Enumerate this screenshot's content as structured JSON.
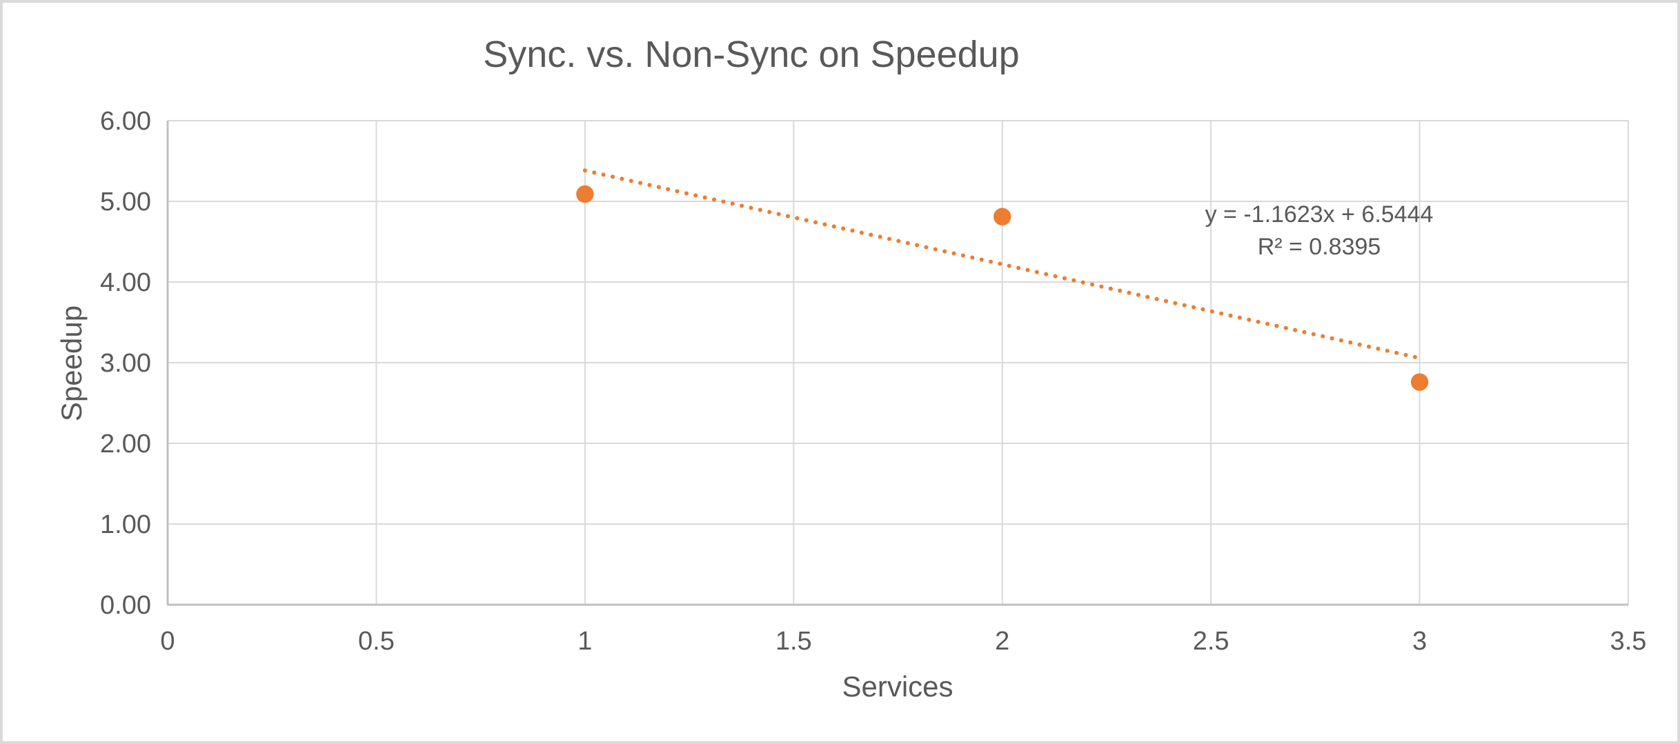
{
  "chart_data": {
    "type": "scatter",
    "title": "Sync. vs. Non-Sync on Speedup",
    "xlabel": "Services",
    "ylabel": "Speedup",
    "grid": true,
    "legend": "none",
    "points": [
      {
        "x": 1,
        "y": 5.09
      },
      {
        "x": 2,
        "y": 4.81
      },
      {
        "x": 3,
        "y": 2.76
      }
    ],
    "trendline": {
      "type": "linear",
      "style": "dotted",
      "slope": -1.1623,
      "intercept": 6.5444,
      "r2": 0.8395,
      "x_start": 1,
      "x_end": 3,
      "equation_label": "y = -1.1623x + 6.5444",
      "r2_label": "R² = 0.8395"
    },
    "x_axis": {
      "min": 0,
      "max": 3.5,
      "tick_step": 0.5,
      "tick_labels": [
        "0",
        "0.5",
        "1",
        "1.5",
        "2",
        "2.5",
        "3",
        "3.5"
      ]
    },
    "y_axis": {
      "min": 0,
      "max": 6,
      "tick_step": 1,
      "tick_labels": [
        "0.00",
        "1.00",
        "2.00",
        "3.00",
        "4.00",
        "5.00",
        "6.00"
      ]
    },
    "colors": {
      "series": "#ED7D31",
      "gridline": "#D9D9D9",
      "axis_line": "#BFBFBF",
      "text": "#595959",
      "background": "#FFFFFF",
      "frame_border": "#D9D9D9"
    }
  }
}
